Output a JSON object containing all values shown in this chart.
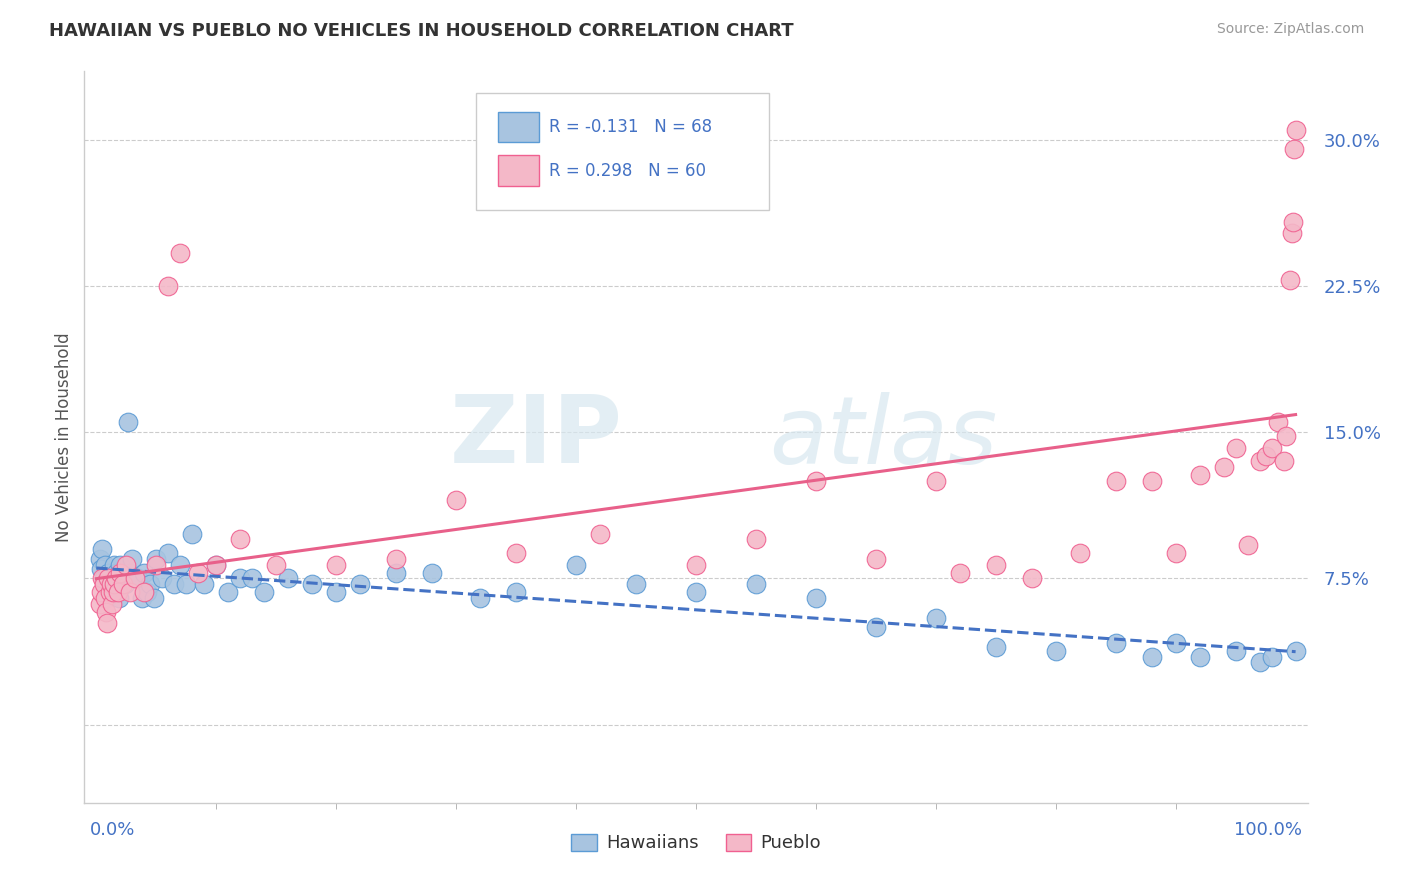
{
  "title": "HAWAIIAN VS PUEBLO NO VEHICLES IN HOUSEHOLD CORRELATION CHART",
  "source": "Source: ZipAtlas.com",
  "ylabel": "No Vehicles in Household",
  "ytick_vals": [
    0.0,
    0.075,
    0.15,
    0.225,
    0.3
  ],
  "ytick_labels": [
    "",
    "7.5%",
    "15.0%",
    "22.5%",
    "30.0%"
  ],
  "xlim": [
    -0.01,
    1.01
  ],
  "ylim": [
    -0.04,
    0.335
  ],
  "hawaiian_color": "#a8c4e0",
  "pueblo_color": "#f4b8c8",
  "hawaiian_edge_color": "#5b9bd5",
  "pueblo_edge_color": "#f06090",
  "hawaiian_line_color": "#4472c4",
  "pueblo_line_color": "#e8608a",
  "r_hawaiian": -0.131,
  "n_hawaiian": 68,
  "r_pueblo": 0.298,
  "n_pueblo": 60,
  "watermark_zip": "ZIP",
  "watermark_atlas": "atlas",
  "hawaiian_x": [
    0.003,
    0.004,
    0.005,
    0.006,
    0.007,
    0.008,
    0.009,
    0.01,
    0.011,
    0.012,
    0.013,
    0.014,
    0.015,
    0.016,
    0.017,
    0.018,
    0.019,
    0.02,
    0.022,
    0.024,
    0.026,
    0.028,
    0.03,
    0.032,
    0.035,
    0.038,
    0.04,
    0.042,
    0.045,
    0.048,
    0.05,
    0.055,
    0.06,
    0.065,
    0.07,
    0.075,
    0.08,
    0.09,
    0.1,
    0.11,
    0.12,
    0.13,
    0.14,
    0.16,
    0.18,
    0.2,
    0.22,
    0.25,
    0.28,
    0.32,
    0.35,
    0.4,
    0.45,
    0.5,
    0.55,
    0.6,
    0.65,
    0.7,
    0.75,
    0.8,
    0.85,
    0.88,
    0.9,
    0.92,
    0.95,
    0.97,
    0.98,
    1.0
  ],
  "hawaiian_y": [
    0.085,
    0.08,
    0.09,
    0.075,
    0.082,
    0.072,
    0.065,
    0.078,
    0.07,
    0.076,
    0.072,
    0.068,
    0.082,
    0.078,
    0.075,
    0.07,
    0.065,
    0.082,
    0.075,
    0.072,
    0.155,
    0.078,
    0.085,
    0.075,
    0.075,
    0.065,
    0.078,
    0.068,
    0.072,
    0.065,
    0.085,
    0.075,
    0.088,
    0.072,
    0.082,
    0.072,
    0.098,
    0.072,
    0.082,
    0.068,
    0.075,
    0.075,
    0.068,
    0.075,
    0.072,
    0.068,
    0.072,
    0.078,
    0.078,
    0.065,
    0.068,
    0.082,
    0.072,
    0.068,
    0.072,
    0.065,
    0.05,
    0.055,
    0.04,
    0.038,
    0.042,
    0.035,
    0.042,
    0.035,
    0.038,
    0.032,
    0.035,
    0.038
  ],
  "pueblo_x": [
    0.003,
    0.004,
    0.005,
    0.006,
    0.007,
    0.008,
    0.009,
    0.01,
    0.011,
    0.012,
    0.013,
    0.014,
    0.015,
    0.016,
    0.018,
    0.02,
    0.022,
    0.025,
    0.028,
    0.032,
    0.04,
    0.05,
    0.06,
    0.07,
    0.085,
    0.1,
    0.12,
    0.15,
    0.2,
    0.25,
    0.3,
    0.35,
    0.42,
    0.5,
    0.55,
    0.6,
    0.65,
    0.7,
    0.72,
    0.75,
    0.78,
    0.82,
    0.85,
    0.88,
    0.9,
    0.92,
    0.94,
    0.95,
    0.96,
    0.97,
    0.975,
    0.98,
    0.985,
    0.99,
    0.992,
    0.995,
    0.997,
    0.998,
    0.999,
    1.0
  ],
  "pueblo_y": [
    0.062,
    0.068,
    0.075,
    0.072,
    0.065,
    0.058,
    0.052,
    0.075,
    0.068,
    0.072,
    0.062,
    0.068,
    0.072,
    0.075,
    0.068,
    0.078,
    0.072,
    0.082,
    0.068,
    0.075,
    0.068,
    0.082,
    0.225,
    0.242,
    0.078,
    0.082,
    0.095,
    0.082,
    0.082,
    0.085,
    0.115,
    0.088,
    0.098,
    0.082,
    0.095,
    0.125,
    0.085,
    0.125,
    0.078,
    0.082,
    0.075,
    0.088,
    0.125,
    0.125,
    0.088,
    0.128,
    0.132,
    0.142,
    0.092,
    0.135,
    0.138,
    0.142,
    0.155,
    0.135,
    0.148,
    0.228,
    0.252,
    0.258,
    0.295,
    0.305
  ]
}
